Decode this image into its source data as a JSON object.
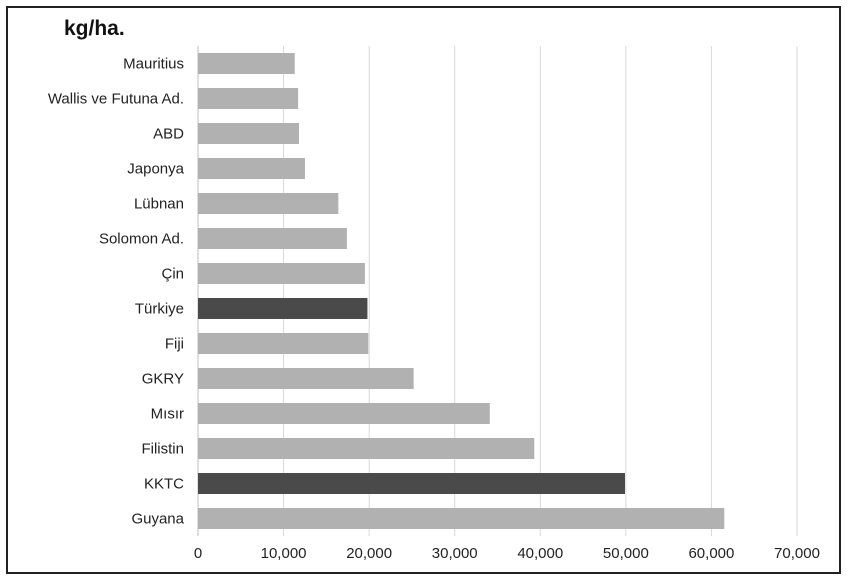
{
  "chart_data": {
    "type": "bar",
    "orientation": "horizontal",
    "unit_label": "kg/ha.",
    "categories": [
      "Mauritius",
      "Wallis ve Futuna Ad.",
      "ABD",
      "Japonya",
      "Lübnan",
      "Solomon Ad.",
      "Çin",
      "Türkiye",
      "Fiji",
      "GKRY",
      "Mısır",
      "Filistin",
      "KKTC",
      "Guyana"
    ],
    "values": [
      11300,
      11700,
      11800,
      12500,
      16400,
      17400,
      19500,
      19800,
      19900,
      25200,
      34100,
      39300,
      49900,
      61500
    ],
    "highlighted": [
      "Türkiye",
      "KKTC"
    ],
    "xlim": [
      0,
      70000
    ],
    "xticks": [
      0,
      10000,
      20000,
      30000,
      40000,
      50000,
      60000,
      70000
    ],
    "xtick_labels": [
      "0",
      "10,000",
      "20,000",
      "30,000",
      "40,000",
      "50,000",
      "60,000",
      "70,000"
    ],
    "grid": "vertical",
    "colors": {
      "bar": "#b1b1b1",
      "highlight": "#4a4a4a",
      "grid": "#d9d9d9",
      "axis": "#bfbfbf"
    }
  }
}
